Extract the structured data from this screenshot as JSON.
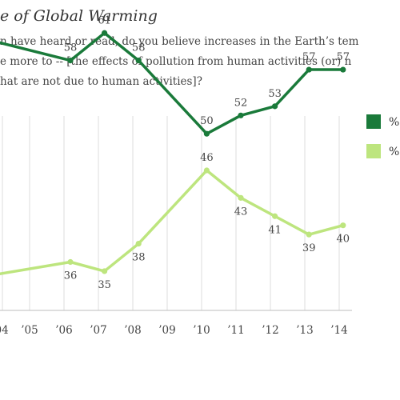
{
  "header": {
    "title": "e of Global Warming",
    "question_lines": [
      "n have heard or read, do you believe increases in the Earth’s tem",
      "e more to -- [the effects of pollution from human activities (or) n",
      "hat are not due to human activities]?"
    ]
  },
  "chart_data": {
    "type": "line",
    "x_tick_labels": [
      "’04",
      "’05",
      "’06",
      "’07",
      "’08",
      "’09",
      "’10",
      "’11",
      "’12",
      "’13",
      "’14"
    ],
    "series": [
      {
        "name": "%",
        "color": "#1a7a3a",
        "points": [
          {
            "x": 2003,
            "y": 61,
            "label": ""
          },
          {
            "x": 2006.2,
            "y": 58,
            "label": "58"
          },
          {
            "x": 2007.2,
            "y": 61,
            "label": "61"
          },
          {
            "x": 2008.2,
            "y": 58,
            "label": "58"
          },
          {
            "x": 2010.2,
            "y": 50,
            "label": "50"
          },
          {
            "x": 2011.2,
            "y": 52,
            "label": "52"
          },
          {
            "x": 2012.2,
            "y": 53,
            "label": "53"
          },
          {
            "x": 2013.2,
            "y": 57,
            "label": "57"
          },
          {
            "x": 2014.2,
            "y": 57,
            "label": "57"
          }
        ]
      },
      {
        "name": "%",
        "color": "#bde57e",
        "points": [
          {
            "x": 2003,
            "y": 34,
            "label": ""
          },
          {
            "x": 2006.2,
            "y": 36,
            "label": "36"
          },
          {
            "x": 2007.2,
            "y": 35,
            "label": "35"
          },
          {
            "x": 2008.2,
            "y": 38,
            "label": "38"
          },
          {
            "x": 2010.2,
            "y": 46,
            "label": "46"
          },
          {
            "x": 2011.2,
            "y": 43,
            "label": "43"
          },
          {
            "x": 2012.2,
            "y": 41,
            "label": "41"
          },
          {
            "x": 2013.2,
            "y": 39,
            "label": "39"
          },
          {
            "x": 2014.2,
            "y": 40,
            "label": "40"
          }
        ]
      }
    ],
    "xlabel": "",
    "ylabel": "",
    "grid": true,
    "legend": "right"
  }
}
